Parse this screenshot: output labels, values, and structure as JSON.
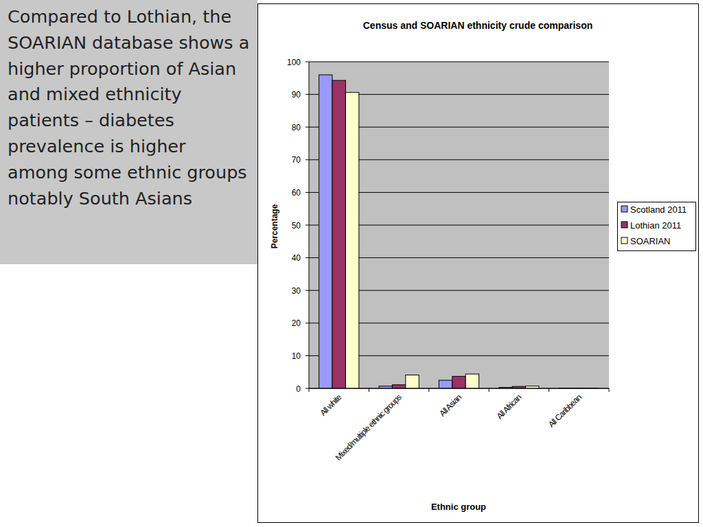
{
  "chart_data": {
    "type": "bar",
    "title": "Census and SOARIAN ethnicity crude comparison",
    "annotations": [
      "Compared to Lothian, the SOARIAN database shows a higher proportion of Asian and mixed ethnicity patients – diabetes prevalence is higher among some ethnic groups notably South Asians"
    ],
    "x_label": "Ethnic group",
    "y_label": "Percentage",
    "categories": [
      "All white",
      "Mixed/multiple ethnic groups",
      "All Asian",
      "All African",
      "All Caribbean"
    ],
    "series": [
      {
        "name": "Scotland 2011",
        "color": "#9999ff",
        "values": [
          96,
          0.7,
          2.5,
          0.3,
          0.1
        ]
      },
      {
        "name": "Lothian 2011",
        "color": "#993366",
        "values": [
          94.3,
          1.1,
          3.7,
          0.6,
          0.1
        ]
      },
      {
        "name": "SOARIAN",
        "color": "#ffffcc",
        "values": [
          90.6,
          4.1,
          4.4,
          0.7,
          0.1
        ]
      }
    ],
    "ylim": [
      0,
      100
    ],
    "yticks": [
      0,
      10,
      20,
      30,
      40,
      50,
      60,
      70,
      80,
      90,
      100
    ],
    "grid": true,
    "legend": "right"
  }
}
